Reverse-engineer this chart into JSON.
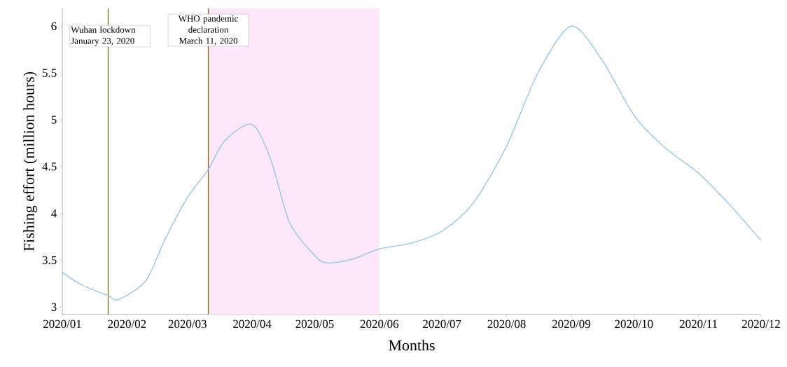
{
  "chart_data": {
    "type": "line",
    "xlabel": "Months",
    "ylabel": "Fishing effort (million hours)",
    "xlim": [
      "2020-01",
      "2020-12"
    ],
    "ylim": [
      2.92,
      6.19
    ],
    "xticks": [
      {
        "value": "2020-01",
        "label": "2020/01"
      },
      {
        "value": "2020-02",
        "label": "2020/02"
      },
      {
        "value": "2020-03",
        "label": "2020/03"
      },
      {
        "value": "2020-04",
        "label": "2020/04"
      },
      {
        "value": "2020-05",
        "label": "2020/05"
      },
      {
        "value": "2020-06",
        "label": "2020/06"
      },
      {
        "value": "2020-07",
        "label": "2020/07"
      },
      {
        "value": "2020-08",
        "label": "2020/08"
      },
      {
        "value": "2020-09",
        "label": "2020/09"
      },
      {
        "value": "2020-10",
        "label": "2020/10"
      },
      {
        "value": "2020-11",
        "label": "2020/11"
      },
      {
        "value": "2020-12",
        "label": "2020/12"
      }
    ],
    "yticks": [
      3,
      3.5,
      4,
      4.5,
      5,
      5.5,
      6
    ],
    "series": [
      {
        "color": "#8cc4e8",
        "x": [
          "2020-01-01",
          "2020-01-10",
          "2020-01-23",
          "2020-01-28",
          "2020-02-10",
          "2020-02-19",
          "2020-03-01",
          "2020-03-11",
          "2020-03-19",
          "2020-04-01",
          "2020-04-10",
          "2020-04-19",
          "2020-05-01",
          "2020-05-07",
          "2020-05-19",
          "2020-06-01",
          "2020-06-16",
          "2020-07-01",
          "2020-07-16",
          "2020-08-01",
          "2020-08-16",
          "2020-09-01",
          "2020-09-16",
          "2020-10-01",
          "2020-10-16",
          "2020-11-01",
          "2020-11-16",
          "2020-12-01"
        ],
        "values": [
          3.37,
          3.24,
          3.12,
          3.08,
          3.28,
          3.71,
          4.17,
          4.47,
          4.78,
          4.95,
          4.57,
          3.9,
          3.55,
          3.47,
          3.51,
          3.62,
          3.68,
          3.81,
          4.11,
          4.72,
          5.5,
          6.0,
          5.63,
          5.05,
          4.7,
          4.43,
          4.09,
          3.71
        ]
      }
    ],
    "bands": [
      {
        "axis": "x",
        "from": "2020-03-11",
        "to": "2020-06-01",
        "color": "#fde8fb"
      }
    ],
    "ref_lines": [
      {
        "axis": "x",
        "value": "2020-01-23",
        "label": "Wuhan lockdown January 23, 2020",
        "color": "#8b6914"
      },
      {
        "axis": "x",
        "value": "2020-03-11",
        "label": "WHO pandemic declaration March 11, 2020",
        "color": "#8b6914"
      }
    ]
  }
}
